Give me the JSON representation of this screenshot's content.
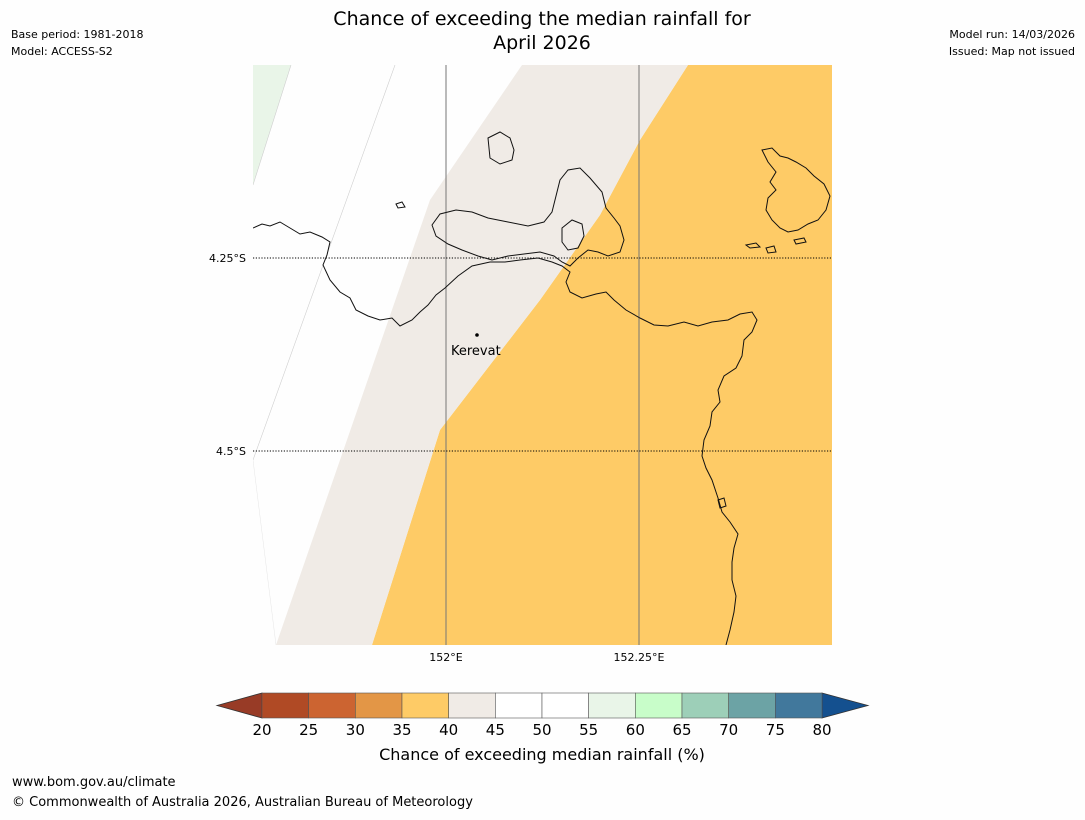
{
  "header": {
    "title_line1": "Chance of exceeding the median rainfall for",
    "title_line2": "April 2026",
    "base_period": "Base period: 1981-2018",
    "model": "Model: ACCESS-S2",
    "model_run": "Model run: 14/03/2026",
    "issued": "Issued: Map not issued"
  },
  "map": {
    "lat_labels": [
      "4.25°S",
      "4.5°S"
    ],
    "lon_labels": [
      "152°E",
      "152.25°E"
    ],
    "place": "Kerevat",
    "region_colors": {
      "bin_55_60": "#e9f5e8",
      "bin_45_55": "#ffffff",
      "bin_40_45": "#f0ebe6",
      "bin_35_40": "#fecb66"
    }
  },
  "colorbar": {
    "ticks": [
      "20",
      "25",
      "30",
      "35",
      "40",
      "45",
      "50",
      "55",
      "60",
      "65",
      "70",
      "75",
      "80"
    ],
    "colors": [
      "#b04a25",
      "#cc6431",
      "#e39646",
      "#fecb66",
      "#f0ebe6",
      "#ffffff",
      "#ffffff",
      "#e9f5e8",
      "#c8fdc9",
      "#9dcfb8",
      "#6ca3a5",
      "#41789c"
    ],
    "under_color": "#983b26",
    "over_color": "#14508f",
    "label": "Chance of exceeding median rainfall (%)"
  },
  "footer": {
    "url": "www.bom.gov.au/climate",
    "copyright": "© Commonwealth of Australia 2026, Australian Bureau of Meteorology"
  }
}
